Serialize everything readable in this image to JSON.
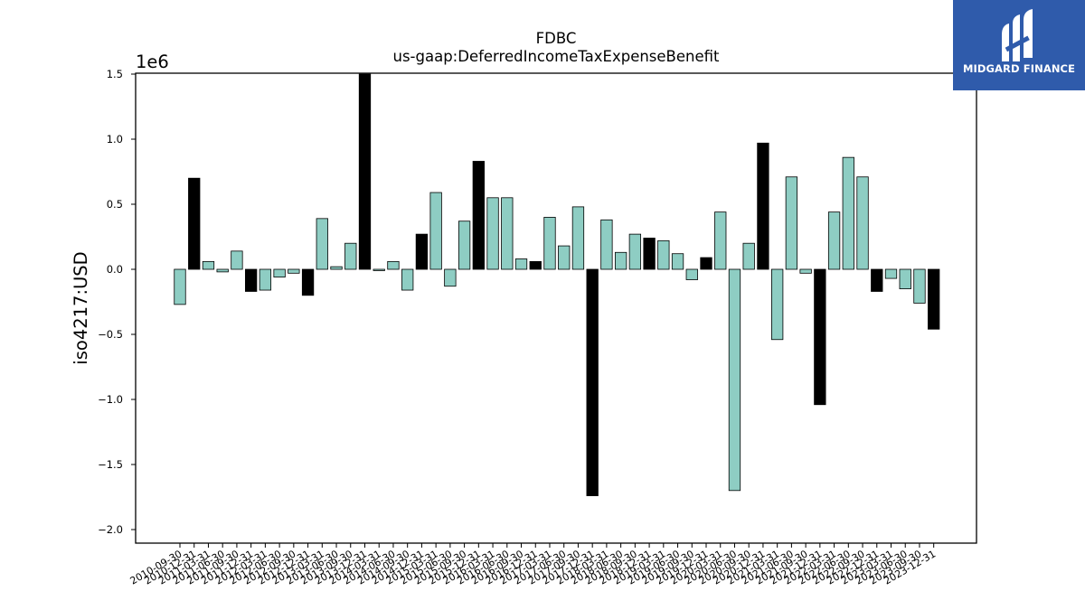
{
  "chart_data": {
    "type": "bar",
    "title": "FDBC",
    "subtitle": "us-gaap:DeferredIncomeTaxExpenseBenefit",
    "ylabel": "iso4217:USD",
    "xlabel": "",
    "offset_label": "1e6",
    "ylim": [
      -2.1,
      1.5
    ],
    "yticks": [
      1.5,
      1.0,
      0.5,
      0.0,
      -0.5,
      -1.0,
      -1.5,
      -2.0
    ],
    "ytick_labels": [
      "1.5",
      "1.0",
      "0.5",
      "0.0",
      "−0.5",
      "−1.0",
      "−1.5",
      "−2.0"
    ],
    "grid": false,
    "legend": false,
    "colors": {
      "quarter": "#8ecdc3",
      "year_end": "#000000",
      "edge": "#000000"
    },
    "categories": [
      "2010-09-30",
      "2010-12-31",
      "2011-03-31",
      "2011-06-30",
      "2011-09-30",
      "2011-12-31",
      "2012-03-31",
      "2012-06-30",
      "2012-09-30",
      "2012-12-31",
      "2013-03-31",
      "2013-06-30",
      "2013-09-30",
      "2013-12-31",
      "2014-03-31",
      "2014-06-30",
      "2014-09-30",
      "2014-12-31",
      "2015-03-31",
      "2015-06-30",
      "2015-09-30",
      "2015-12-31",
      "2016-03-31",
      "2016-06-30",
      "2016-09-30",
      "2016-12-31",
      "2017-03-31",
      "2017-06-30",
      "2017-09-30",
      "2017-12-31",
      "2018-03-31",
      "2018-06-30",
      "2018-09-30",
      "2018-12-31",
      "2019-03-31",
      "2019-06-30",
      "2019-09-30",
      "2019-12-31",
      "2020-03-31",
      "2020-06-30",
      "2020-09-30",
      "2020-12-31",
      "2021-03-31",
      "2021-06-30",
      "2021-09-30",
      "2021-12-31",
      "2022-03-31",
      "2022-06-30",
      "2022-09-30",
      "2022-12-31",
      "2023-03-31",
      "2023-06-30",
      "2023-09-30",
      "2023-12-31"
    ],
    "values": [
      -0.27,
      0.7,
      0.06,
      -0.02,
      0.14,
      -0.17,
      -0.16,
      -0.06,
      -0.03,
      -0.2,
      0.39,
      0.02,
      0.2,
      1.5,
      -0.01,
      0.06,
      -0.16,
      0.27,
      0.59,
      -0.13,
      0.37,
      0.83,
      0.55,
      0.55,
      0.08,
      0.06,
      0.4,
      0.18,
      0.48,
      -1.74,
      0.38,
      0.13,
      0.27,
      0.24,
      0.22,
      0.12,
      -0.08,
      0.09,
      0.44,
      -1.7,
      0.2,
      0.97,
      -0.54,
      0.71,
      -0.03,
      -1.04,
      0.44,
      0.86,
      0.71,
      -0.17,
      -0.07,
      -0.15,
      -0.26,
      -0.46
    ]
  },
  "logo": {
    "text": "MIDGARD FINANCE"
  }
}
